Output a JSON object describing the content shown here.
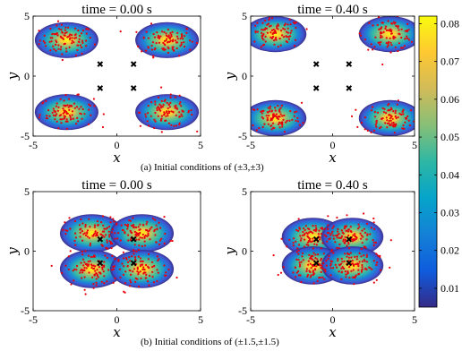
{
  "chart_data": [
    {
      "id": "a-left",
      "type": "heatmap",
      "title": "time = 0.00 s",
      "xlabel": "x",
      "ylabel": "y",
      "xlim": [
        -5,
        5
      ],
      "ylim": [
        -5,
        5
      ],
      "xticks": [
        "-5",
        "0",
        "5"
      ],
      "yticks": [
        "5",
        "0",
        "-5"
      ],
      "blob_centers": [
        [
          -3,
          3
        ],
        [
          3,
          3
        ],
        [
          -3,
          -3
        ],
        [
          3,
          -3
        ]
      ],
      "blob_radius": [
        1.9,
        1.5
      ],
      "markers": [
        [
          -1,
          1
        ],
        [
          1,
          1
        ],
        [
          -1,
          -1
        ],
        [
          1,
          -1
        ]
      ],
      "grid": false
    },
    {
      "id": "a-right",
      "type": "heatmap",
      "title": "time = 0.40 s",
      "xlabel": "x",
      "ylabel": "y",
      "xlim": [
        -5,
        5
      ],
      "ylim": [
        -5,
        5
      ],
      "xticks": [
        "-5",
        "0",
        "5"
      ],
      "yticks": [
        "5",
        "0",
        "-5"
      ],
      "blob_centers": [
        [
          -3.5,
          3.5
        ],
        [
          3.5,
          3.5
        ],
        [
          -3.5,
          -3.5
        ],
        [
          3.5,
          -3.5
        ]
      ],
      "blob_radius": [
        1.9,
        1.5
      ],
      "markers": [
        [
          -1,
          1
        ],
        [
          1,
          1
        ],
        [
          -1,
          -1
        ],
        [
          1,
          -1
        ]
      ],
      "grid": false
    },
    {
      "id": "b-left",
      "type": "heatmap",
      "title": "time = 0.00 s",
      "xlabel": "x",
      "ylabel": "y",
      "xlim": [
        -5,
        5
      ],
      "ylim": [
        -5,
        5
      ],
      "xticks": [
        "-5",
        "0",
        "5"
      ],
      "yticks": [
        "5",
        "0",
        "-5"
      ],
      "blob_centers": [
        [
          -1.5,
          1.5
        ],
        [
          1.5,
          1.5
        ],
        [
          -1.5,
          -1.5
        ],
        [
          1.5,
          -1.5
        ]
      ],
      "blob_radius": [
        1.9,
        1.6
      ],
      "markers": [
        [
          -1,
          1
        ],
        [
          1,
          1
        ],
        [
          -1,
          -1
        ],
        [
          1,
          -1
        ]
      ],
      "grid": false
    },
    {
      "id": "b-right",
      "type": "heatmap",
      "title": "time = 0.40 s",
      "xlabel": "x",
      "ylabel": "y",
      "xlim": [
        -5,
        5
      ],
      "ylim": [
        -5,
        5
      ],
      "xticks": [
        "-5",
        "0",
        "5"
      ],
      "yticks": [
        "5",
        "0",
        "-5"
      ],
      "blob_centers": [
        [
          -1.2,
          1.2
        ],
        [
          1.2,
          1.2
        ],
        [
          -1.2,
          -1.2
        ],
        [
          1.2,
          -1.2
        ]
      ],
      "blob_radius": [
        1.9,
        1.6
      ],
      "markers": [
        [
          -1,
          1
        ],
        [
          1,
          1
        ],
        [
          -1,
          -1
        ],
        [
          1,
          -1
        ]
      ],
      "grid": false
    }
  ],
  "colorbar": {
    "ticks": [
      "0.08",
      "0.07",
      "0.06",
      "0.05",
      "0.04",
      "0.03",
      "0.02",
      "0.01"
    ],
    "tick_values": [
      0.08,
      0.07,
      0.06,
      0.05,
      0.04,
      0.03,
      0.02,
      0.01
    ],
    "range": [
      0.005,
      0.082
    ],
    "colormap": "parula",
    "colors": [
      "#352a87",
      "#0f5cdd",
      "#1481d6",
      "#06a4ca",
      "#2eb7a4",
      "#87bf77",
      "#d1bb59",
      "#fec832",
      "#f9fb0e"
    ]
  },
  "captions": {
    "a": "(a) Initial conditions of (±3,±3)",
    "b": "(b) Initial conditions of (±1.5,±1.5)"
  },
  "colors": {
    "particle": "#e8000b",
    "marker": "#000000"
  }
}
